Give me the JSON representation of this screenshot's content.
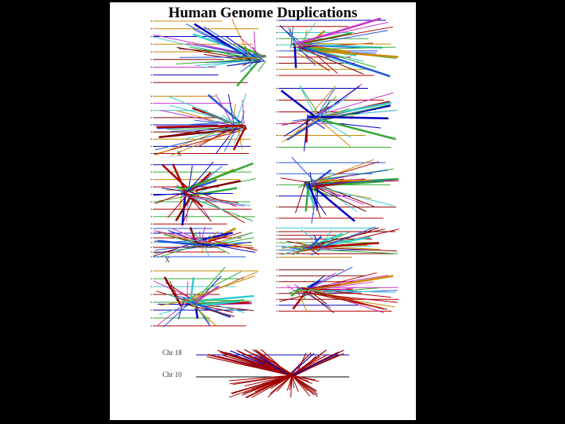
{
  "title": "Human Genome Duplications",
  "labels": [
    "Chr 18",
    "Chr 10",
    "X",
    "X"
  ]
}
